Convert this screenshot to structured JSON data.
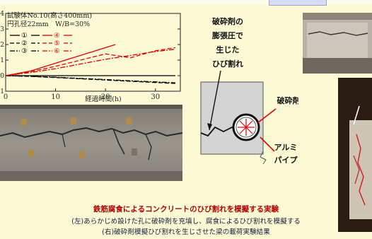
{
  "chart_data": {
    "type": "line",
    "title_lines": [
      "試験体No.10(高さ400mm)",
      "円孔径22mm　W/B=30%"
    ],
    "xlabel": "経過時間(h)",
    "xlim": [
      0,
      35
    ],
    "ylim": [
      -1,
      4
    ],
    "x_ticks": [
      0,
      10,
      20,
      30
    ],
    "y_ticks": [
      -1,
      0,
      1,
      2,
      3,
      4
    ],
    "legend": [
      "①",
      "②",
      "③",
      "④",
      "⑤",
      "⑥"
    ],
    "series": [
      {
        "name": "①",
        "color": "#000000",
        "dash": "solid",
        "x": [
          0,
          5,
          10,
          15,
          20,
          25,
          30,
          34
        ],
        "y": [
          0,
          0,
          0,
          0,
          0,
          0,
          0,
          0
        ]
      },
      {
        "name": "②",
        "color": "#000000",
        "dash": "dash",
        "x": [
          0,
          5,
          10,
          15,
          20,
          25,
          30,
          34
        ],
        "y": [
          0,
          -0.05,
          -0.12,
          -0.2,
          -0.28,
          -0.36,
          -0.44,
          -0.5
        ]
      },
      {
        "name": "③",
        "color": "#000000",
        "dash": "dashdot",
        "x": [
          0,
          5,
          10,
          15,
          20,
          25,
          30,
          34
        ],
        "y": [
          0,
          -0.04,
          -0.1,
          -0.18,
          -0.25,
          -0.33,
          -0.4,
          -0.46
        ]
      },
      {
        "name": "④",
        "color": "#e00000",
        "dash": "solid",
        "x": [
          0,
          5,
          10,
          15,
          20,
          22
        ],
        "y": [
          0,
          0.3,
          0.8,
          1.3,
          1.8,
          2.0
        ]
      },
      {
        "name": "⑤",
        "color": "#e00000",
        "dash": "dash",
        "x": [
          0,
          5,
          10,
          15,
          20,
          25,
          30,
          34
        ],
        "y": [
          0,
          0.25,
          0.6,
          1.0,
          1.4,
          1.15,
          1.6,
          1.8
        ]
      },
      {
        "name": "⑥",
        "color": "#e00000",
        "dashdot": true,
        "dash": "dashdot",
        "x": [
          0,
          5,
          10,
          15,
          20,
          25,
          30,
          34
        ],
        "y": [
          0,
          0.2,
          0.45,
          0.75,
          1.05,
          1.3,
          1.55,
          1.7
        ]
      }
    ]
  },
  "diagram": {
    "label_crack": [
      "破砕剤の",
      "膨張圧で",
      "生じた",
      "ひび割れ"
    ],
    "label_agent": "破砕剤",
    "label_pipe": [
      "アルミ",
      "パイプ"
    ]
  },
  "caption": {
    "title": "鉄筋腐食によるコンクリートのひび割れを模擬する実験",
    "line1": "(左)あらかじめ設けた孔に破砕剤を充填し、腐食によるひび割れを模擬する",
    "line2": "(右)破砕剤模擬ひび割れを生じさせた梁の載荷実験結果"
  },
  "colors": {
    "background": "#fcfbd6",
    "accent_red": "#e00000",
    "caption_red": "#b00000"
  }
}
